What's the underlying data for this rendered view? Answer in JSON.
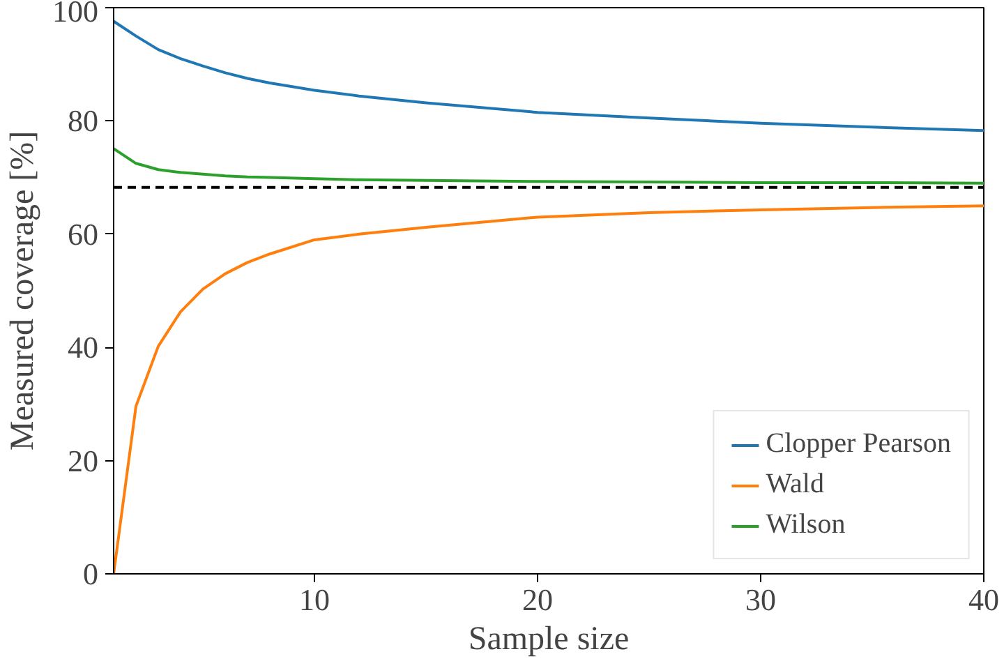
{
  "chart_data": {
    "type": "line",
    "xlabel": "Sample size",
    "ylabel": "Measured coverage [%]",
    "x": [
      1,
      2,
      3,
      4,
      5,
      6,
      7,
      8,
      10,
      12,
      15,
      20,
      25,
      30,
      35,
      40
    ],
    "series": [
      {
        "name": "Clopper Pearson",
        "color": "#1f77b4",
        "values": [
          97.6,
          95,
          92.6,
          91,
          89.7,
          88.5,
          87.5,
          86.7,
          85.4,
          84.4,
          83.2,
          81.5,
          80.5,
          79.6,
          78.9,
          78.3
        ]
      },
      {
        "name": "Wald",
        "color": "#ff7f0e",
        "values": [
          0,
          29.6,
          40.2,
          46.3,
          50.3,
          53,
          55,
          56.5,
          59,
          60,
          61.2,
          63,
          63.8,
          64.3,
          64.7,
          65
        ]
      },
      {
        "name": "Wilson",
        "color": "#2ca02c",
        "values": [
          75.1,
          72.5,
          71.4,
          70.9,
          70.6,
          70.3,
          70.1,
          70,
          69.8,
          69.6,
          69.5,
          69.3,
          69.2,
          69.1,
          69.1,
          69
        ]
      }
    ],
    "xlim": [
      1,
      40
    ],
    "ylim": [
      0,
      100
    ],
    "xticks": [
      10,
      20,
      30,
      40
    ],
    "yticks": [
      0,
      20,
      40,
      60,
      80,
      100
    ],
    "ref_lines": [
      {
        "axis": "y",
        "value": 68.27,
        "color": "#000000",
        "line_style": "dashed"
      }
    ],
    "grid": false,
    "legend": "bottom right",
    "line_style": "solid",
    "marker": "none"
  }
}
